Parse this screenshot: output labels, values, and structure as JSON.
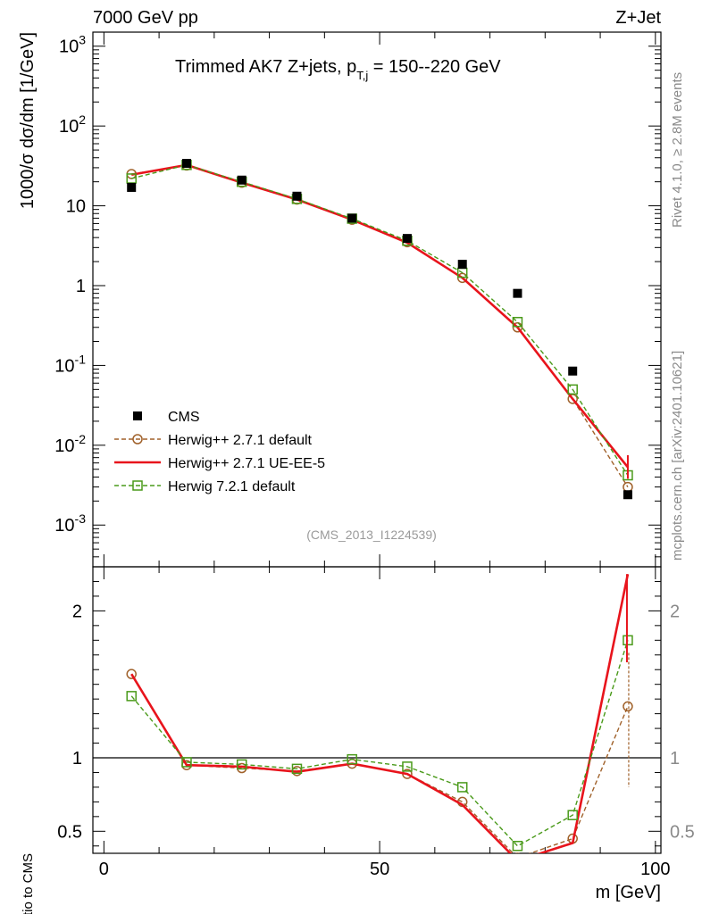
{
  "header": {
    "left_label": "7000 GeV pp",
    "right_label": "Z+Jet"
  },
  "side_text": {
    "rivet": "Rivet 4.1.0, ≥ 2.8M events",
    "mcplots": "mcplots.cern.ch [arXiv:2401.10621]"
  },
  "chart_data": [
    {
      "type": "line",
      "panel": "main",
      "title": "Trimmed AK7 Z+jets, p",
      "title_sub": "T,j",
      "title_suffix": " = 150--220 GeV",
      "ylabel": "1000/σ  dσ/dm [1/GeV]",
      "yscale": "log",
      "ylim": [
        0.0003,
        1500
      ],
      "xlim": [
        -2,
        101
      ],
      "watermark": "(CMS_2013_I1224539)",
      "x": [
        5,
        15,
        25,
        35,
        45,
        55,
        65,
        75,
        85,
        95
      ],
      "yticks": [
        {
          "value": 0.001,
          "base": "10",
          "exp": "-3"
        },
        {
          "value": 0.01,
          "base": "10",
          "exp": "-2"
        },
        {
          "value": 0.1,
          "base": "10",
          "exp": "-1"
        },
        {
          "value": 1,
          "base": "1",
          "exp": ""
        },
        {
          "value": 10,
          "base": "10",
          "exp": ""
        },
        {
          "value": 100,
          "base": "10",
          "exp": "2"
        },
        {
          "value": 1000,
          "base": "10",
          "exp": "3"
        }
      ],
      "series": [
        {
          "name": "CMS",
          "kind": "data",
          "color": "#000000",
          "values": [
            17,
            34,
            21,
            13.2,
            7.0,
            3.9,
            1.85,
            0.8,
            0.085,
            0.0024
          ]
        },
        {
          "name": "Herwig++ 2.7.1 default",
          "kind": "circle-dashed",
          "color": "#a0612a",
          "values": [
            25,
            32,
            19.5,
            12,
            6.7,
            3.5,
            1.25,
            0.3,
            0.038,
            0.003
          ]
        },
        {
          "name": "Herwig++ 2.7.1 UE-EE-5",
          "kind": "solid",
          "color": "#e8141c",
          "values": [
            24.5,
            32.5,
            19.5,
            12,
            6.7,
            3.45,
            1.25,
            0.3,
            0.038,
            0.0053
          ]
        },
        {
          "name": "Herwig 7.2.1 default",
          "kind": "square-dashed",
          "color": "#4a9a1a",
          "values": [
            22,
            32.5,
            20,
            12.2,
            6.9,
            3.65,
            1.45,
            0.35,
            0.05,
            0.0042
          ]
        }
      ]
    },
    {
      "type": "line",
      "panel": "ratio",
      "ylabel": "Ratio to CMS",
      "xlabel": "m [GeV]",
      "ylim": [
        0.35,
        2.3
      ],
      "xlim": [
        -2,
        101
      ],
      "xticks": [
        0,
        50,
        100
      ],
      "yticks": [
        0.5,
        1,
        2
      ],
      "x": [
        5,
        15,
        25,
        35,
        45,
        55,
        65,
        75,
        85,
        95
      ],
      "series": [
        {
          "name": "Herwig++ 2.7.1 default",
          "kind": "circle-dashed",
          "color": "#a0612a",
          "values": [
            1.57,
            0.95,
            0.93,
            0.91,
            0.96,
            0.89,
            0.7,
            0.32,
            0.45,
            1.35
          ]
        },
        {
          "name": "Herwig++ 2.7.1 UE-EE-5",
          "kind": "solid",
          "color": "#e8141c",
          "values": [
            1.57,
            0.95,
            0.94,
            0.905,
            0.96,
            0.89,
            0.68,
            0.3,
            0.42,
            2.25
          ]
        },
        {
          "name": "Herwig 7.2.1 default",
          "kind": "square-dashed",
          "color": "#4a9a1a",
          "values": [
            1.42,
            0.97,
            0.955,
            0.925,
            0.99,
            0.94,
            0.8,
            0.4,
            0.61,
            1.8
          ]
        }
      ]
    }
  ]
}
